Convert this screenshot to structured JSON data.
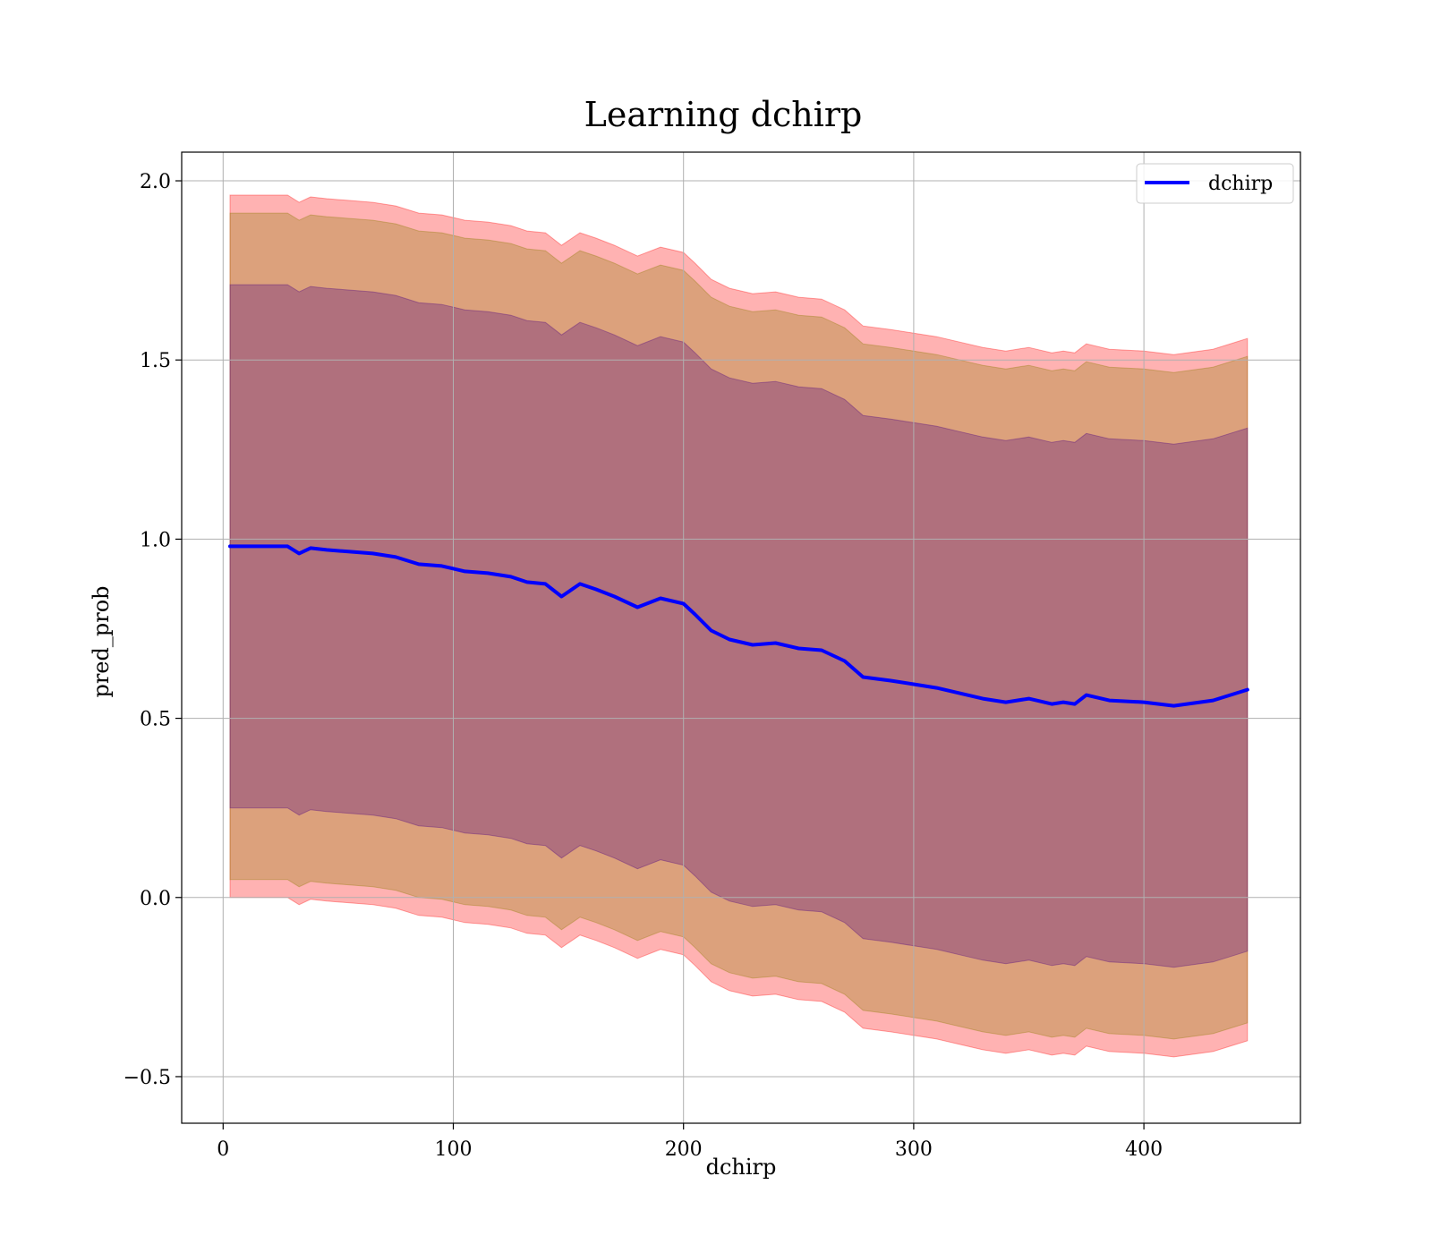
{
  "chart_data": {
    "type": "line",
    "title": "Learning dchirp",
    "xlabel": "dchirp",
    "ylabel": "pred_prob",
    "xlim": [
      -18,
      468
    ],
    "ylim": [
      -0.63,
      2.08
    ],
    "xticks": [
      0,
      100,
      200,
      300,
      400
    ],
    "yticks": [
      -0.5,
      0.0,
      0.5,
      1.0,
      1.5,
      2.0
    ],
    "xtick_labels": [
      "0",
      "100",
      "200",
      "300",
      "400"
    ],
    "ytick_labels": [
      "−0.5",
      "0.0",
      "0.5",
      "1.0",
      "1.5",
      "2.0"
    ],
    "grid": true,
    "legend_position": "top-right",
    "legend": [
      "dchirp"
    ],
    "series": [
      {
        "name": "dchirp",
        "color": "#0000ff",
        "x": [
          3,
          10,
          20,
          28,
          33,
          38,
          45,
          55,
          65,
          75,
          85,
          95,
          105,
          115,
          125,
          132,
          140,
          147,
          155,
          162,
          170,
          180,
          190,
          200,
          205,
          212,
          220,
          230,
          240,
          250,
          260,
          270,
          278,
          290,
          300,
          310,
          320,
          330,
          340,
          350,
          360,
          365,
          370,
          375,
          385,
          400,
          413,
          430,
          445
        ],
        "y": [
          0.98,
          0.98,
          0.98,
          0.98,
          0.96,
          0.975,
          0.97,
          0.965,
          0.96,
          0.95,
          0.93,
          0.925,
          0.91,
          0.905,
          0.895,
          0.88,
          0.875,
          0.84,
          0.875,
          0.86,
          0.84,
          0.81,
          0.835,
          0.82,
          0.79,
          0.745,
          0.72,
          0.705,
          0.71,
          0.695,
          0.69,
          0.66,
          0.615,
          0.605,
          0.595,
          0.585,
          0.57,
          0.555,
          0.545,
          0.555,
          0.54,
          0.545,
          0.54,
          0.565,
          0.55,
          0.545,
          0.535,
          0.55,
          0.58
        ]
      }
    ],
    "bands": [
      {
        "color": "#ff0000",
        "opacity": 0.3,
        "x": [
          3,
          10,
          20,
          28,
          33,
          38,
          45,
          55,
          65,
          75,
          85,
          95,
          105,
          115,
          125,
          132,
          140,
          147,
          155,
          162,
          170,
          180,
          190,
          200,
          205,
          212,
          220,
          230,
          240,
          250,
          260,
          270,
          278,
          290,
          300,
          310,
          320,
          330,
          340,
          350,
          360,
          365,
          370,
          375,
          385,
          400,
          413,
          430,
          445
        ],
        "width": 0.98
      },
      {
        "color": "#8b7a00",
        "opacity": 0.3,
        "x": [
          3,
          10,
          20,
          28,
          33,
          38,
          45,
          55,
          65,
          75,
          85,
          95,
          105,
          115,
          125,
          132,
          140,
          147,
          155,
          162,
          170,
          180,
          190,
          200,
          205,
          212,
          220,
          230,
          240,
          250,
          260,
          270,
          278,
          290,
          300,
          310,
          320,
          330,
          340,
          350,
          360,
          365,
          370,
          375,
          385,
          400,
          413,
          430,
          445
        ],
        "width": 0.93
      },
      {
        "color": "#4b0082",
        "opacity": 0.3,
        "x": [
          3,
          10,
          20,
          28,
          33,
          38,
          45,
          55,
          65,
          75,
          85,
          95,
          105,
          115,
          125,
          132,
          140,
          147,
          155,
          162,
          170,
          180,
          190,
          200,
          205,
          212,
          220,
          230,
          240,
          250,
          260,
          270,
          278,
          290,
          300,
          310,
          320,
          330,
          340,
          350,
          360,
          365,
          370,
          375,
          385,
          400,
          413,
          430,
          445
        ],
        "width": 0.73
      }
    ]
  }
}
